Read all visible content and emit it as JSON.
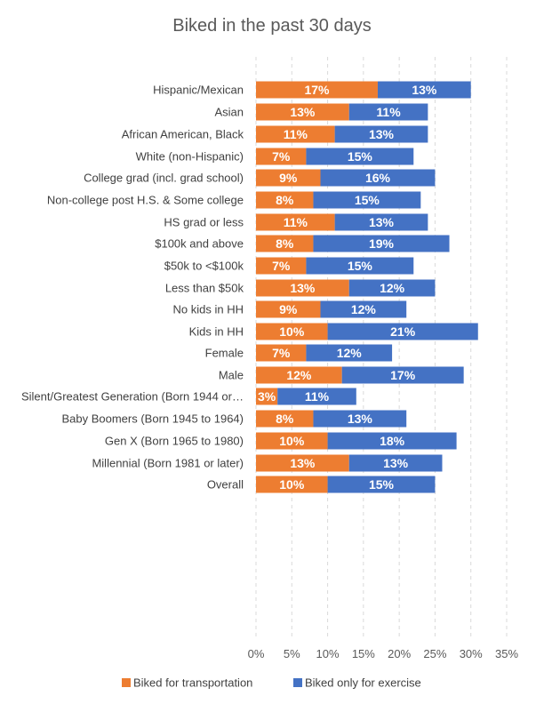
{
  "chart_data": {
    "type": "bar",
    "orientation": "horizontal",
    "stacked": true,
    "title": "Biked in the past 30 days",
    "xlim": [
      0,
      35
    ],
    "x_ticks": [
      "0%",
      "5%",
      "10%",
      "15%",
      "20%",
      "25%",
      "30%",
      "35%"
    ],
    "grid": true,
    "legend_position": "bottom",
    "colors": {
      "transportation": "#ed7d31",
      "exercise": "#4472c4"
    },
    "groups": [
      {
        "rows": [
          {
            "label": "Hispanic/Mexican",
            "transportation": 17,
            "exercise": 13,
            "transportation_label": "17%",
            "exercise_label": "13%"
          },
          {
            "label": "Asian",
            "transportation": 13,
            "exercise": 11,
            "transportation_label": "13%",
            "exercise_label": "11%"
          },
          {
            "label": "African American, Black",
            "transportation": 11,
            "exercise": 13,
            "transportation_label": "11%",
            "exercise_label": "13%"
          },
          {
            "label": "White (non-Hispanic)",
            "transportation": 7,
            "exercise": 15,
            "transportation_label": "7%",
            "exercise_label": "15%"
          }
        ]
      },
      {
        "rows": [
          {
            "label": "College grad (incl. grad school)",
            "transportation": 9,
            "exercise": 16,
            "transportation_label": "9%",
            "exercise_label": "16%"
          },
          {
            "label": "Non-college post H.S. & Some college",
            "transportation": 8,
            "exercise": 15,
            "transportation_label": "8%",
            "exercise_label": "15%"
          },
          {
            "label": "HS grad or less",
            "transportation": 11,
            "exercise": 13,
            "transportation_label": "11%",
            "exercise_label": "13%"
          }
        ]
      },
      {
        "rows": [
          {
            "label": "$100k and above",
            "transportation": 8,
            "exercise": 19,
            "transportation_label": "8%",
            "exercise_label": "19%"
          },
          {
            "label": "$50k to <$100k",
            "transportation": 7,
            "exercise": 15,
            "transportation_label": "7%",
            "exercise_label": "15%"
          },
          {
            "label": "Less than $50k",
            "transportation": 13,
            "exercise": 12,
            "transportation_label": "13%",
            "exercise_label": "12%"
          }
        ]
      },
      {
        "rows": [
          {
            "label": "No kids in HH",
            "transportation": 9,
            "exercise": 12,
            "transportation_label": "9%",
            "exercise_label": "12%"
          },
          {
            "label": "Kids in HH",
            "transportation": 10,
            "exercise": 21,
            "transportation_label": "10%",
            "exercise_label": "21%"
          }
        ]
      },
      {
        "rows": [
          {
            "label": "Female",
            "transportation": 7,
            "exercise": 12,
            "transportation_label": "7%",
            "exercise_label": "12%"
          },
          {
            "label": "Male",
            "transportation": 12,
            "exercise": 17,
            "transportation_label": "12%",
            "exercise_label": "17%"
          }
        ]
      },
      {
        "rows": [
          {
            "label": "Silent/Greatest Generation (Born 1944 or…",
            "transportation": 3,
            "exercise": 11,
            "transportation_label": "3%",
            "exercise_label": "11%"
          },
          {
            "label": "Baby Boomers (Born 1945 to 1964)",
            "transportation": 8,
            "exercise": 13,
            "transportation_label": "8%",
            "exercise_label": "13%"
          },
          {
            "label": "Gen X (Born 1965 to 1980)",
            "transportation": 10,
            "exercise": 18,
            "transportation_label": "10%",
            "exercise_label": "18%"
          },
          {
            "label": "Millennial (Born 1981 or later)",
            "transportation": 13,
            "exercise": 13,
            "transportation_label": "13%",
            "exercise_label": "13%"
          }
        ]
      },
      {
        "rows": [
          {
            "label": "Overall",
            "transportation": 10,
            "exercise": 15,
            "transportation_label": "10%",
            "exercise_label": "15%"
          }
        ]
      }
    ],
    "legend": [
      {
        "key": "transportation",
        "label": "Biked for transportation"
      },
      {
        "key": "exercise",
        "label": "Biked only for exercise"
      }
    ]
  }
}
